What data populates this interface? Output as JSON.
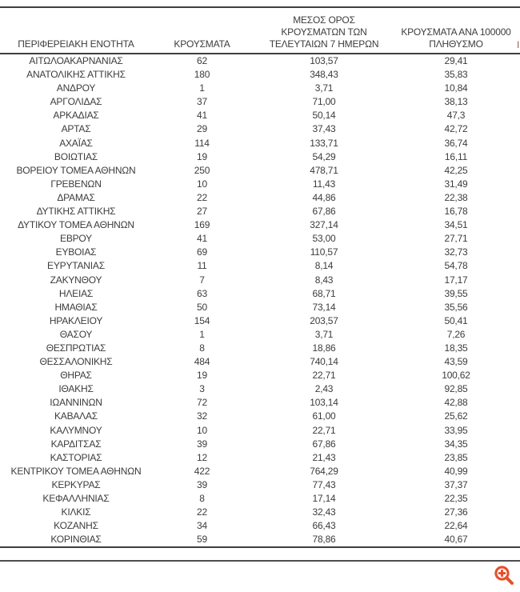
{
  "colors": {
    "text": "#3c3c3c",
    "table_line": "#3f3f3f",
    "divider_line": "#4d4d4d",
    "zoom_icon_orange": "#e4502c"
  },
  "icons": {
    "zoom_in": "zoom-in-magnifier-plus"
  },
  "edge_fragment": "Ι",
  "chart_data": {
    "type": "table",
    "columns": [
      "ΠΕΡΙΦΕΡΕΙΑΚΗ ΕΝΟΤΗΤΑ",
      "ΚΡΟΥΣΜΑΤΑ",
      "ΜΕΣΟΣ ΟΡΟΣ\nΚΡΟΥΣΜΑΤΩΝ ΤΩΝ\nΤΕΛΕΥΤΑΙΩΝ 7 ΗΜΕΡΩΝ",
      "ΚΡΟΥΣΜΑΤΑ ΑΝΑ 100000\nΠΛΗΘΥΣΜΟ"
    ],
    "rows": [
      [
        "ΑΙΤΩΛΟΑΚΑΡΝΑΝΙΑΣ",
        "62",
        "103,57",
        "29,41"
      ],
      [
        "ΑΝΑΤΟΛΙΚΗΣ ΑΤΤΙΚΗΣ",
        "180",
        "348,43",
        "35,83"
      ],
      [
        "ΑΝΔΡΟΥ",
        "1",
        "3,71",
        "10,84"
      ],
      [
        "ΑΡΓΟΛΙΔΑΣ",
        "37",
        "71,00",
        "38,13"
      ],
      [
        "ΑΡΚΑΔΙΑΣ",
        "41",
        "50,14",
        "47,3"
      ],
      [
        "ΑΡΤΑΣ",
        "29",
        "37,43",
        "42,72"
      ],
      [
        "ΑΧΑΪΑΣ",
        "114",
        "133,71",
        "36,74"
      ],
      [
        "ΒΟΙΩΤΙΑΣ",
        "19",
        "54,29",
        "16,11"
      ],
      [
        "ΒΟΡΕΙΟΥ ΤΟΜΕΑ ΑΘΗΝΩΝ",
        "250",
        "478,71",
        "42,25"
      ],
      [
        "ΓΡΕΒΕΝΩΝ",
        "10",
        "11,43",
        "31,49"
      ],
      [
        "ΔΡΑΜΑΣ",
        "22",
        "44,86",
        "22,38"
      ],
      [
        "ΔΥΤΙΚΗΣ ΑΤΤΙΚΗΣ",
        "27",
        "67,86",
        "16,78"
      ],
      [
        "ΔΥΤΙΚΟΥ ΤΟΜΕΑ ΑΘΗΝΩΝ",
        "169",
        "327,14",
        "34,51"
      ],
      [
        "ΕΒΡΟΥ",
        "41",
        "53,00",
        "27,71"
      ],
      [
        "ΕΥΒΟΙΑΣ",
        "69",
        "110,57",
        "32,73"
      ],
      [
        "ΕΥΡΥΤΑΝΙΑΣ",
        "11",
        "8,14",
        "54,78"
      ],
      [
        "ΖΑΚΥΝΘΟΥ",
        "7",
        "8,43",
        "17,17"
      ],
      [
        "ΗΛΕΙΑΣ",
        "63",
        "68,71",
        "39,55"
      ],
      [
        "ΗΜΑΘΙΑΣ",
        "50",
        "73,14",
        "35,56"
      ],
      [
        "ΗΡΑΚΛΕΙΟΥ",
        "154",
        "203,57",
        "50,41"
      ],
      [
        "ΘΑΣΟΥ",
        "1",
        "3,71",
        "7,26"
      ],
      [
        "ΘΕΣΠΡΩΤΙΑΣ",
        "8",
        "18,86",
        "18,35"
      ],
      [
        "ΘΕΣΣΑΛΟΝΙΚΗΣ",
        "484",
        "740,14",
        "43,59"
      ],
      [
        "ΘΗΡΑΣ",
        "19",
        "22,71",
        "100,62"
      ],
      [
        "ΙΘΑΚΗΣ",
        "3",
        "2,43",
        "92,85"
      ],
      [
        "ΙΩΑΝΝΙΝΩΝ",
        "72",
        "103,14",
        "42,88"
      ],
      [
        "ΚΑΒΑΛΑΣ",
        "32",
        "61,00",
        "25,62"
      ],
      [
        "ΚΑΛΥΜΝΟΥ",
        "10",
        "22,71",
        "33,95"
      ],
      [
        "ΚΑΡΔΙΤΣΑΣ",
        "39",
        "67,86",
        "34,35"
      ],
      [
        "ΚΑΣΤΟΡΙΑΣ",
        "12",
        "21,43",
        "23,85"
      ],
      [
        "ΚΕΝΤΡΙΚΟΥ ΤΟΜΕΑ ΑΘΗΝΩΝ",
        "422",
        "764,29",
        "40,99"
      ],
      [
        "ΚΕΡΚΥΡΑΣ",
        "39",
        "77,43",
        "37,37"
      ],
      [
        "ΚΕΦΑΛΛΗΝΙΑΣ",
        "8",
        "17,14",
        "22,35"
      ],
      [
        "ΚΙΛΚΙΣ",
        "22",
        "32,43",
        "27,36"
      ],
      [
        "ΚΟΖΑΝΗΣ",
        "34",
        "66,43",
        "22,64"
      ],
      [
        "ΚΟΡΙΝΘΙΑΣ",
        "59",
        "78,86",
        "40,67"
      ]
    ]
  }
}
